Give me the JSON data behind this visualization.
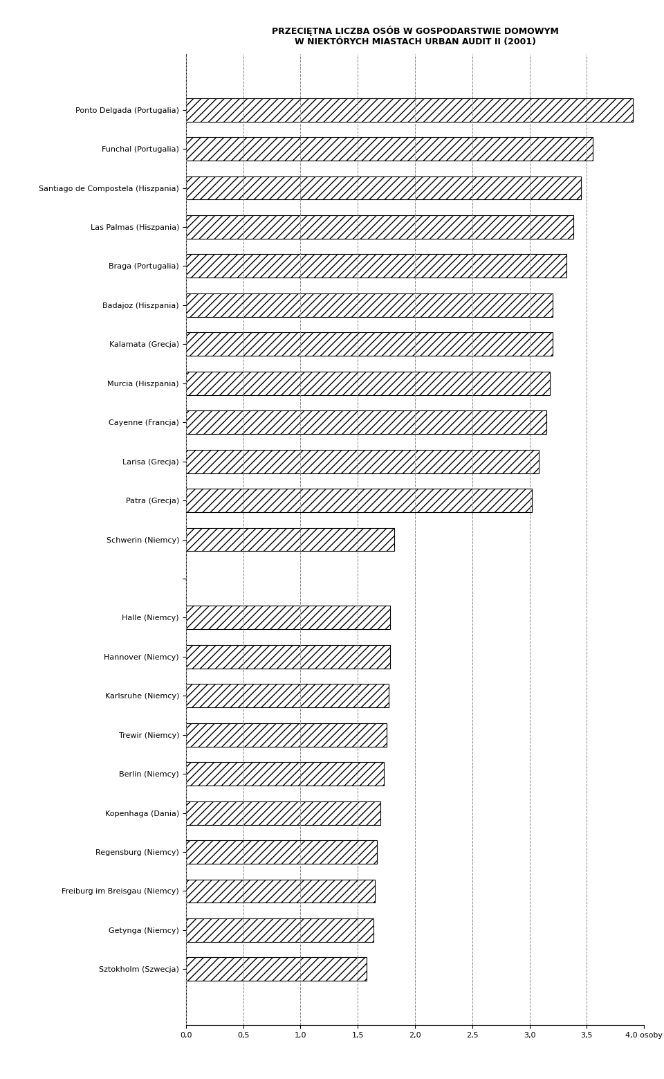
{
  "title_line1": "PRZECIĘTNA LICZBA OSÓB W GOSPODARSTWIE DOMOWYM",
  "title_line2": "W NIEKTÓRYCH MIASTACH URBAN AUDIT II (2001)",
  "categories": [
    "Ponto Delgada (Portugalia)",
    "Funchal (Portugalia)",
    "Santiago de Compostela (Hiszpania)",
    "Las Palmas (Hiszpania)",
    "Braga (Portugalia)",
    "Badajoz (Hiszpania)",
    "Kalamata (Grecja)",
    "Murcia (Hiszpania)",
    "Cayenne (Francja)",
    "Larisa (Grecja)",
    "Patra (Grecja)",
    "Schwerin (Niemcy)",
    "",
    "Halle (Niemcy)",
    "Hannover (Niemcy)",
    "Karlsruhe (Niemcy)",
    "Trewir (Niemcy)",
    "Berlin (Niemcy)",
    "Kopenhaga (Dania)",
    "Regensburg (Niemcy)",
    "Freiburg im Breisgau (Niemcy)",
    "Getynga (Niemcy)",
    "Sztokholm (Szwecja)"
  ],
  "values": [
    3.9,
    3.55,
    3.45,
    3.38,
    3.32,
    3.2,
    3.2,
    3.18,
    3.15,
    3.08,
    3.02,
    1.82,
    0,
    1.78,
    1.78,
    1.77,
    1.75,
    1.73,
    1.7,
    1.67,
    1.65,
    1.64,
    1.58
  ],
  "xlim": [
    0,
    4.0
  ],
  "xticks": [
    0.0,
    0.5,
    1.0,
    1.5,
    2.0,
    2.5,
    3.0,
    3.5,
    4.0
  ],
  "xtick_labels": [
    "0,0",
    "0,5",
    "1,0",
    "1,5",
    "2,0",
    "2,5",
    "3,0",
    "3,5",
    "4,0 osoby"
  ],
  "bar_color": "#ffffff",
  "bar_edgecolor": "#000000",
  "hatch": "///",
  "background_color": "#ffffff",
  "title_fontsize": 9,
  "label_fontsize": 8,
  "tick_fontsize": 8
}
